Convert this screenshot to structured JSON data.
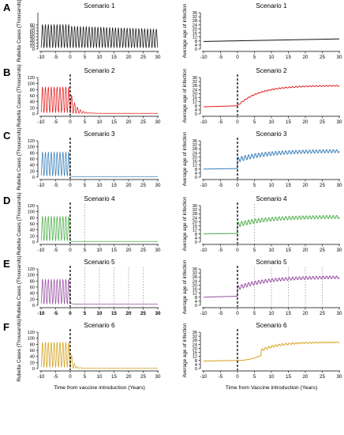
{
  "chart_data": [
    {
      "panel": "A",
      "title": "Scenario 1",
      "type": "line",
      "ylabel": "Rubella Cases (Thousands)",
      "xlabel": "",
      "xlim": [
        -10,
        30
      ],
      "ylim": [
        0,
        120
      ],
      "xticks": [
        "-10",
        "-5",
        "0",
        "5",
        "10",
        "15",
        "20",
        "25",
        "30"
      ],
      "yticks": [
        "0",
        "10",
        "20",
        "30",
        "40",
        "50",
        "60",
        "70",
        "80"
      ],
      "color": "#111111",
      "dashed_lines": [],
      "dotted_lines": [],
      "series": [
        {
          "desc": "annual oscillation ~5 to ~80 thousand throughout",
          "peak": 80,
          "trough": 5,
          "post_peak": 75,
          "post_decay": 0.005,
          "post_floor": 5,
          "post_osc": true
        }
      ]
    },
    {
      "panel": "A",
      "title": "Scenario 1",
      "type": "line",
      "ylabel": "Average age of infection",
      "xlabel": "",
      "xlim": [
        -10,
        30
      ],
      "ylim": [
        0,
        36
      ],
      "xticks": [
        "-10",
        "-5",
        "0",
        "5",
        "10",
        "15",
        "20",
        "25",
        "30"
      ],
      "yticks": [
        "0",
        "4",
        "8",
        "12",
        "16",
        "20",
        "24",
        "28",
        "32",
        "36"
      ],
      "color": "#111111",
      "dashed_lines": [],
      "dotted_lines": [],
      "series": [
        {
          "start": 7.5,
          "end": 10,
          "shape": "linear",
          "osc": 0
        }
      ]
    },
    {
      "panel": "B",
      "title": "Scenario 2",
      "type": "line",
      "ylabel": "Rubella Cases (Thousands)",
      "xlabel": "",
      "xlim": [
        -10,
        30
      ],
      "ylim": [
        0,
        120
      ],
      "xticks": [
        "-10",
        "-5",
        "0",
        "5",
        "10",
        "15",
        "20",
        "25",
        "30"
      ],
      "yticks": [
        "0",
        "20",
        "40",
        "60",
        "80",
        "100",
        "120"
      ],
      "color": "#e41a1c",
      "dashed_lines": [
        0
      ],
      "dotted_lines": [],
      "series": [
        {
          "peak": 88,
          "trough": 5,
          "post_peak": 80,
          "post_decay": 0.55,
          "post_floor": 2,
          "post_osc": true
        }
      ]
    },
    {
      "panel": "B",
      "title": "Scenario 2",
      "type": "line",
      "ylabel": "Average age of infection",
      "xlabel": "",
      "xlim": [
        -10,
        30
      ],
      "ylim": [
        0,
        36
      ],
      "xticks": [
        "-10",
        "-5",
        "0",
        "5",
        "10",
        "15",
        "20",
        "25",
        "30"
      ],
      "yticks": [
        "0",
        "4",
        "8",
        "12",
        "16",
        "20",
        "24",
        "28",
        "32",
        "36"
      ],
      "color": "#e41a1c",
      "dashed_lines": [
        0
      ],
      "dotted_lines": [],
      "series": [
        {
          "start": 7,
          "pre_end": 8,
          "end": 28,
          "shape": "sigmoid",
          "rate": 0.16,
          "osc": 0.5
        }
      ]
    },
    {
      "panel": "C",
      "title": "Scenario 3",
      "type": "line",
      "ylabel": "Rubella Cases (Thousands)",
      "xlabel": "",
      "xlim": [
        -10,
        30
      ],
      "ylim": [
        0,
        120
      ],
      "xticks": [
        "-10",
        "-5",
        "0",
        "5",
        "10",
        "15",
        "20",
        "25",
        "30"
      ],
      "yticks": [
        "0",
        "20",
        "40",
        "60",
        "80",
        "100",
        "120"
      ],
      "color": "#377eb8",
      "dashed_lines": [
        0
      ],
      "dotted_lines": [],
      "series": [
        {
          "peak": 82,
          "trough": 5,
          "post_peak": 3,
          "post_decay": 3,
          "post_floor": 2,
          "post_osc": false
        }
      ]
    },
    {
      "panel": "C",
      "title": "Scenario 3",
      "type": "line",
      "ylabel": "Average age of infection",
      "xlabel": "",
      "xlim": [
        -10,
        30
      ],
      "ylim": [
        0,
        36
      ],
      "xticks": [
        "-10",
        "-5",
        "0",
        "5",
        "10",
        "15",
        "20",
        "25",
        "30"
      ],
      "yticks": [
        "0",
        "4",
        "8",
        "12",
        "16",
        "20",
        "24",
        "28",
        "32",
        "36"
      ],
      "color": "#377eb8",
      "dashed_lines": [
        0
      ],
      "dotted_lines": [],
      "series": [
        {
          "start": 8,
          "pre_end": 8.5,
          "jump": 17,
          "end": 26,
          "shape": "jump",
          "osc": 2.5
        }
      ]
    },
    {
      "panel": "D",
      "title": "Scenario 4",
      "type": "line",
      "ylabel": "Rubella Cases (Thousands)",
      "xlabel": "",
      "xlim": [
        -10,
        30
      ],
      "ylim": [
        0,
        120
      ],
      "xticks": [
        "-10",
        "-5",
        "0",
        "5",
        "10",
        "15",
        "20",
        "25",
        "30"
      ],
      "yticks": [
        "0",
        "20",
        "40",
        "60",
        "80",
        "100",
        "120"
      ],
      "color": "#4daf4a",
      "dashed_lines": [
        0
      ],
      "dotted_lines": [
        5
      ],
      "series": [
        {
          "peak": 84,
          "trough": 5,
          "post_peak": 3,
          "post_decay": 3,
          "post_floor": 2,
          "post_osc": false
        }
      ]
    },
    {
      "panel": "D",
      "title": "Scenario 4",
      "type": "line",
      "ylabel": "Average age of infection",
      "xlabel": "",
      "xlim": [
        -10,
        30
      ],
      "ylim": [
        0,
        36
      ],
      "xticks": [
        "-10",
        "-5",
        "0",
        "5",
        "10",
        "15",
        "20",
        "25",
        "30"
      ],
      "yticks": [
        "0",
        "4",
        "8",
        "12",
        "16",
        "20",
        "24",
        "28",
        "32",
        "36"
      ],
      "color": "#4daf4a",
      "dashed_lines": [
        0
      ],
      "dotted_lines": [
        5
      ],
      "series": [
        {
          "start": 8,
          "pre_end": 8.5,
          "jump": 17,
          "end": 25,
          "shape": "jump",
          "osc": 2.5
        }
      ]
    },
    {
      "panel": "E",
      "title": "Scenario 5",
      "type": "line",
      "ylabel": "Rubella Cases (Thousands)",
      "xlabel": "",
      "xlim": [
        -10,
        30
      ],
      "ylim": [
        0,
        120
      ],
      "xticks": [
        "-10",
        "-5",
        "0",
        "5",
        "10",
        "15",
        "20",
        "25",
        "30"
      ],
      "yticks": [
        "0",
        "20",
        "40",
        "60",
        "80",
        "100",
        "120"
      ],
      "color": "#984ea3",
      "dashed_lines": [
        0
      ],
      "dotted_lines": [
        5,
        10,
        15,
        20,
        25
      ],
      "series": [
        {
          "peak": 85,
          "trough": 5,
          "post_peak": 8,
          "post_decay": 2,
          "post_floor": 4,
          "post_osc": false
        }
      ]
    },
    {
      "panel": "E",
      "title": "Scenario 5",
      "type": "line",
      "ylabel": "Average age of infection",
      "xlabel": "",
      "xlim": [
        -10,
        30
      ],
      "ylim": [
        0,
        36
      ],
      "xticks": [
        "-10",
        "-5",
        "0",
        "5",
        "10",
        "15",
        "20",
        "25",
        "30"
      ],
      "yticks": [
        "0",
        "4",
        "8",
        "12",
        "16",
        "20",
        "24",
        "28",
        "32",
        "36"
      ],
      "color": "#984ea3",
      "dashed_lines": [
        0
      ],
      "dotted_lines": [
        5,
        10,
        15,
        20,
        25
      ],
      "series": [
        {
          "start": 8,
          "pre_end": 9,
          "jump": 17,
          "end": 28,
          "shape": "jump",
          "osc": 2.2
        }
      ]
    },
    {
      "panel": "F",
      "title": "Scenario 6",
      "type": "line",
      "ylabel": "Rubella Cases (Thousands)",
      "xlabel": "Time from vaccine introduction (Years)",
      "xlim": [
        -10,
        30
      ],
      "ylim": [
        0,
        120
      ],
      "xticks": [
        "-10",
        "-5",
        "0",
        "5",
        "10",
        "15",
        "20",
        "25",
        "30"
      ],
      "yticks": [
        "0",
        "20",
        "40",
        "60",
        "80",
        "100",
        "120"
      ],
      "color": "#d4a017",
      "dashed_lines": [
        0
      ],
      "dotted_lines": [],
      "series": [
        {
          "peak": 86,
          "trough": 5,
          "post_peak": 70,
          "post_decay": 1.0,
          "post_floor": 1,
          "post_osc": true
        }
      ]
    },
    {
      "panel": "F",
      "title": "Scenario 6",
      "type": "line",
      "ylabel": "Average age of infection",
      "xlabel": "Time from Vaccine introduction (Years)",
      "xlim": [
        -10,
        30
      ],
      "ylim": [
        0,
        36
      ],
      "xticks": [
        "-10",
        "-5",
        "0",
        "5",
        "10",
        "15",
        "20",
        "25",
        "30"
      ],
      "yticks": [
        "0",
        "4",
        "8",
        "12",
        "16",
        "20",
        "24",
        "28",
        "32",
        "36"
      ],
      "color": "#d4a017",
      "dashed_lines": [
        0
      ],
      "dotted_lines": [],
      "series": [
        {
          "start": 7.5,
          "pre_end": 8,
          "jump": 18,
          "end": 26,
          "shape": "late-jump",
          "osc": 1.2
        }
      ]
    }
  ]
}
